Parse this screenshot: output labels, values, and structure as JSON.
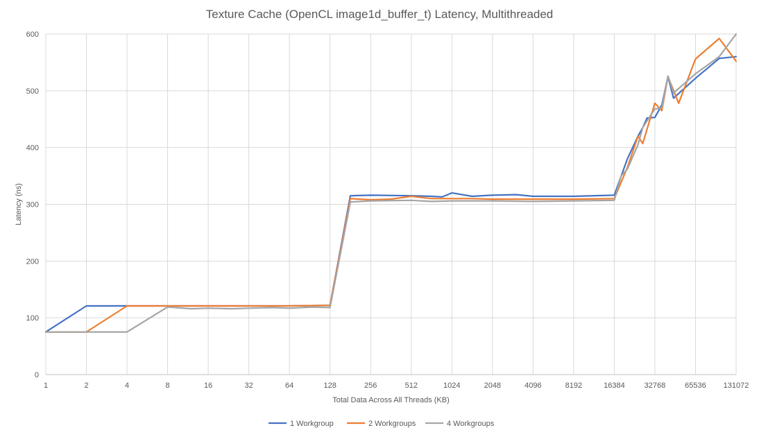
{
  "chart_data": {
    "type": "line",
    "title": "Texture Cache (OpenCL image1d_buffer_t) Latency, Multithreaded",
    "xlabel": "Total Data Across All Threads (KB)",
    "ylabel": "Latency (ns)",
    "x_scale": "log2",
    "xlim": [
      1,
      131072
    ],
    "ylim": [
      0,
      600
    ],
    "y_ticks": [
      0,
      100,
      200,
      300,
      400,
      500,
      600
    ],
    "x_ticks": [
      1,
      2,
      4,
      8,
      16,
      32,
      64,
      128,
      256,
      512,
      1024,
      2048,
      4096,
      8192,
      16384,
      32768,
      65536,
      131072
    ],
    "x_tick_labels": [
      "1",
      "2",
      "4",
      "8",
      "16",
      "32",
      "64",
      "128",
      "256",
      "512",
      "1024",
      "2048",
      "4096",
      "8192",
      "16384",
      "32768",
      "65536",
      "131072"
    ],
    "y_tick_labels": [
      "0",
      "100",
      "200",
      "300",
      "400",
      "500",
      "600"
    ],
    "grid": "vertical and horizontal",
    "legend_position": "bottom",
    "series": [
      {
        "name": "1 Workgroup",
        "color": "#4472C4",
        "points": [
          [
            1,
            75
          ],
          [
            2,
            121
          ],
          [
            4,
            121
          ],
          [
            8,
            121
          ],
          [
            16,
            121
          ],
          [
            32,
            121
          ],
          [
            64,
            121
          ],
          [
            128,
            122
          ],
          [
            181,
            315
          ],
          [
            256,
            316
          ],
          [
            512,
            315
          ],
          [
            724,
            314
          ],
          [
            868,
            313
          ],
          [
            1024,
            320
          ],
          [
            1448,
            314
          ],
          [
            2048,
            316
          ],
          [
            3072,
            317
          ],
          [
            4096,
            314
          ],
          [
            8192,
            314
          ],
          [
            16384,
            316
          ],
          [
            20480,
            380
          ],
          [
            24576,
            420
          ],
          [
            26624,
            435
          ],
          [
            28672,
            452
          ],
          [
            32768,
            453
          ],
          [
            36864,
            475
          ],
          [
            40960,
            525
          ],
          [
            45056,
            487
          ],
          [
            65536,
            522
          ],
          [
            98304,
            557
          ],
          [
            131072,
            560
          ]
        ]
      },
      {
        "name": "2 Workgroups",
        "color": "#ED7D31",
        "points": [
          [
            1,
            75
          ],
          [
            2,
            75
          ],
          [
            4,
            121
          ],
          [
            8,
            121
          ],
          [
            16,
            121
          ],
          [
            32,
            121
          ],
          [
            64,
            121
          ],
          [
            128,
            122
          ],
          [
            181,
            310
          ],
          [
            256,
            308
          ],
          [
            362,
            309
          ],
          [
            512,
            314
          ],
          [
            724,
            310
          ],
          [
            1024,
            310
          ],
          [
            1448,
            310
          ],
          [
            2048,
            309
          ],
          [
            4096,
            309
          ],
          [
            8192,
            309
          ],
          [
            16384,
            310
          ],
          [
            20480,
            365
          ],
          [
            24576,
            420
          ],
          [
            26624,
            407
          ],
          [
            32768,
            478
          ],
          [
            36864,
            465
          ],
          [
            40960,
            525
          ],
          [
            49152,
            478
          ],
          [
            65536,
            556
          ],
          [
            98304,
            592
          ],
          [
            131072,
            552
          ]
        ]
      },
      {
        "name": "4 Workgroups",
        "color": "#A5A5A5",
        "points": [
          [
            1,
            75
          ],
          [
            2,
            75
          ],
          [
            4,
            75
          ],
          [
            8,
            119
          ],
          [
            12,
            116
          ],
          [
            16,
            117
          ],
          [
            24,
            116
          ],
          [
            32,
            117
          ],
          [
            48,
            118
          ],
          [
            64,
            117
          ],
          [
            96,
            119
          ],
          [
            128,
            118
          ],
          [
            181,
            304
          ],
          [
            256,
            306
          ],
          [
            512,
            307
          ],
          [
            724,
            305
          ],
          [
            1024,
            306
          ],
          [
            2048,
            306
          ],
          [
            4096,
            305
          ],
          [
            8192,
            306
          ],
          [
            16384,
            307
          ],
          [
            18432,
            350
          ],
          [
            20480,
            362
          ],
          [
            24576,
            405
          ],
          [
            26624,
            435
          ],
          [
            32768,
            468
          ],
          [
            36864,
            470
          ],
          [
            40960,
            526
          ],
          [
            45056,
            496
          ],
          [
            65536,
            530
          ],
          [
            98304,
            560
          ],
          [
            131072,
            600
          ]
        ]
      }
    ]
  }
}
